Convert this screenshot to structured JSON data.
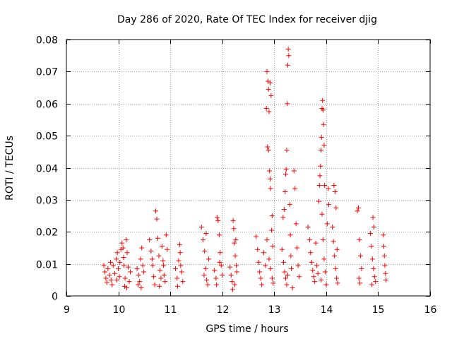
{
  "chart_data": {
    "type": "scatter",
    "title": "Day 286 of 2020, Rate Of TEC Index for receiver djig",
    "xlabel": "GPS time / hours",
    "ylabel": "ROTI / TECUs",
    "xlim": [
      9,
      16
    ],
    "ylim": [
      0,
      0.08
    ],
    "grid": true,
    "marker": "+",
    "color": "#ff0000",
    "x_ticks": [
      {
        "value": 9,
        "label": "9"
      },
      {
        "value": 10,
        "label": "10"
      },
      {
        "value": 11,
        "label": "11"
      },
      {
        "value": 12,
        "label": "12"
      },
      {
        "value": 13,
        "label": "13"
      },
      {
        "value": 14,
        "label": "14"
      },
      {
        "value": 15,
        "label": "15"
      },
      {
        "value": 16,
        "label": "16"
      }
    ],
    "y_ticks": [
      {
        "value": 0,
        "label": "0"
      },
      {
        "value": 0.01,
        "label": "0.01"
      },
      {
        "value": 0.02,
        "label": "0.02"
      },
      {
        "value": 0.03,
        "label": "0.03"
      },
      {
        "value": 0.04,
        "label": "0.04"
      },
      {
        "value": 0.05,
        "label": "0.05"
      },
      {
        "value": 0.06,
        "label": "0.06"
      },
      {
        "value": 0.07,
        "label": "0.07"
      },
      {
        "value": 0.08,
        "label": "0.08"
      }
    ],
    "series": [
      {
        "name": "ROTI",
        "points": [
          [
            9.72,
            0.0095
          ],
          [
            9.74,
            0.0075
          ],
          [
            9.76,
            0.0055
          ],
          [
            9.78,
            0.0042
          ],
          [
            9.8,
            0.0085
          ],
          [
            9.83,
            0.0065
          ],
          [
            9.86,
            0.005
          ],
          [
            9.88,
            0.0035
          ],
          [
            9.9,
            0.0095
          ],
          [
            9.93,
            0.007
          ],
          [
            9.85,
            0.0105
          ],
          [
            9.96,
            0.0115
          ],
          [
            9.98,
            0.0135
          ],
          [
            10.0,
            0.0085
          ],
          [
            10.02,
            0.006
          ],
          [
            10.05,
            0.0145
          ],
          [
            10.07,
            0.0165
          ],
          [
            10.09,
            0.015
          ],
          [
            10.11,
            0.0095
          ],
          [
            10.13,
            0.0055
          ],
          [
            10.15,
            0.0175
          ],
          [
            10.17,
            0.0135
          ],
          [
            10.19,
            0.009
          ],
          [
            10.21,
            0.0045
          ],
          [
            10.23,
            0.0075
          ],
          [
            10.1,
            0.012
          ],
          [
            10.03,
            0.0105
          ],
          [
            10.12,
            0.003
          ],
          [
            10.16,
            0.0025
          ],
          [
            9.97,
            0.005
          ],
          [
            10.36,
            0.0085
          ],
          [
            10.39,
            0.0065
          ],
          [
            10.41,
            0.0045
          ],
          [
            10.43,
            0.0115
          ],
          [
            10.45,
            0.015
          ],
          [
            10.47,
            0.0095
          ],
          [
            10.38,
            0.0035
          ],
          [
            10.44,
            0.0025
          ],
          [
            10.49,
            0.0075
          ],
          [
            10.6,
            0.0175
          ],
          [
            10.63,
            0.014
          ],
          [
            10.66,
            0.0095
          ],
          [
            10.68,
            0.006
          ],
          [
            10.7,
            0.0035
          ],
          [
            10.72,
            0.0265
          ],
          [
            10.74,
            0.024
          ],
          [
            10.76,
            0.018
          ],
          [
            10.78,
            0.0125
          ],
          [
            10.8,
            0.008
          ],
          [
            10.82,
            0.0055
          ],
          [
            10.84,
            0.0155
          ],
          [
            10.86,
            0.011
          ],
          [
            10.88,
            0.0065
          ],
          [
            10.9,
            0.0045
          ],
          [
            10.92,
            0.019
          ],
          [
            10.94,
            0.0145
          ],
          [
            10.65,
            0.0115
          ],
          [
            10.79,
            0.003
          ],
          [
            10.87,
            0.0095
          ],
          [
            11.1,
            0.0085
          ],
          [
            11.13,
            0.0055
          ],
          [
            11.16,
            0.011
          ],
          [
            11.19,
            0.0135
          ],
          [
            11.22,
            0.0075
          ],
          [
            11.24,
            0.0045
          ],
          [
            11.18,
            0.016
          ],
          [
            11.2,
            0.0095
          ],
          [
            11.14,
            0.003
          ],
          [
            11.6,
            0.0215
          ],
          [
            11.63,
            0.0175
          ],
          [
            11.66,
            0.014
          ],
          [
            11.68,
            0.0085
          ],
          [
            11.7,
            0.005
          ],
          [
            11.72,
            0.0035
          ],
          [
            11.74,
            0.0115
          ],
          [
            11.65,
            0.0065
          ],
          [
            11.69,
            0.0195
          ],
          [
            11.85,
            0.008
          ],
          [
            11.88,
            0.0055
          ],
          [
            11.9,
            0.0245
          ],
          [
            11.92,
            0.0235
          ],
          [
            11.94,
            0.019
          ],
          [
            11.96,
            0.0135
          ],
          [
            11.98,
            0.0095
          ],
          [
            12.0,
            0.0065
          ],
          [
            11.89,
            0.0035
          ],
          [
            11.95,
            0.0105
          ],
          [
            12.15,
            0.009
          ],
          [
            12.17,
            0.0065
          ],
          [
            12.19,
            0.0045
          ],
          [
            12.21,
            0.0235
          ],
          [
            12.22,
            0.021
          ],
          [
            12.23,
            0.0165
          ],
          [
            12.25,
            0.0125
          ],
          [
            12.27,
            0.0095
          ],
          [
            12.2,
            0.002
          ],
          [
            12.24,
            0.0035
          ],
          [
            12.26,
            0.0175
          ],
          [
            12.28,
            0.0075
          ],
          [
            12.65,
            0.0185
          ],
          [
            12.68,
            0.0145
          ],
          [
            12.7,
            0.0105
          ],
          [
            12.72,
            0.0075
          ],
          [
            12.74,
            0.0055
          ],
          [
            12.76,
            0.0035
          ],
          [
            12.8,
            0.0135
          ],
          [
            12.83,
            0.0095
          ],
          [
            12.85,
            0.0585
          ],
          [
            12.86,
            0.07
          ],
          [
            12.88,
            0.067
          ],
          [
            12.89,
            0.0645
          ],
          [
            12.9,
            0.0575
          ],
          [
            12.92,
            0.0665
          ],
          [
            12.94,
            0.0625
          ],
          [
            12.87,
            0.0465
          ],
          [
            12.89,
            0.0455
          ],
          [
            12.91,
            0.039
          ],
          [
            12.92,
            0.0365
          ],
          [
            12.93,
            0.0335
          ],
          [
            12.96,
            0.025
          ],
          [
            12.95,
            0.0205
          ],
          [
            12.97,
            0.0155
          ],
          [
            12.9,
            0.0115
          ],
          [
            12.93,
            0.0085
          ],
          [
            12.96,
            0.0055
          ],
          [
            12.98,
            0.004
          ],
          [
            12.86,
            0.0175
          ],
          [
            13.15,
            0.0145
          ],
          [
            13.18,
            0.0105
          ],
          [
            13.2,
            0.0075
          ],
          [
            13.22,
            0.0055
          ],
          [
            13.24,
            0.0035
          ],
          [
            13.17,
            0.0245
          ],
          [
            13.19,
            0.027
          ],
          [
            13.21,
            0.0325
          ],
          [
            13.22,
            0.038
          ],
          [
            13.23,
            0.0395
          ],
          [
            13.24,
            0.0455
          ],
          [
            13.25,
            0.06
          ],
          [
            13.26,
            0.072
          ],
          [
            13.27,
            0.077
          ],
          [
            13.28,
            0.075
          ],
          [
            13.3,
            0.0285
          ],
          [
            13.31,
            0.019
          ],
          [
            13.32,
            0.0125
          ],
          [
            13.33,
            0.0085
          ],
          [
            13.26,
            0.0065
          ],
          [
            13.38,
            0.039
          ],
          [
            13.4,
            0.0335
          ],
          [
            13.42,
            0.0225
          ],
          [
            13.44,
            0.015
          ],
          [
            13.46,
            0.0095
          ],
          [
            13.48,
            0.006
          ],
          [
            13.35,
            0.0025
          ],
          [
            13.65,
            0.0215
          ],
          [
            13.68,
            0.0175
          ],
          [
            13.7,
            0.0135
          ],
          [
            13.72,
            0.0105
          ],
          [
            13.74,
            0.008
          ],
          [
            13.76,
            0.006
          ],
          [
            13.78,
            0.0045
          ],
          [
            13.8,
            0.0165
          ],
          [
            13.82,
            0.0095
          ],
          [
            13.84,
            0.007
          ],
          [
            13.86,
            0.0295
          ],
          [
            13.87,
            0.0345
          ],
          [
            13.88,
            0.0375
          ],
          [
            13.89,
            0.0405
          ],
          [
            13.9,
            0.0455
          ],
          [
            13.91,
            0.0495
          ],
          [
            13.92,
            0.0585
          ],
          [
            13.93,
            0.061
          ],
          [
            13.94,
            0.058
          ],
          [
            13.95,
            0.0535
          ],
          [
            13.96,
            0.047
          ],
          [
            13.97,
            0.0345
          ],
          [
            13.92,
            0.0255
          ],
          [
            13.94,
            0.0175
          ],
          [
            13.96,
            0.0115
          ],
          [
            13.98,
            0.0075
          ],
          [
            13.9,
            0.005
          ],
          [
            14.0,
            0.0035
          ],
          [
            14.02,
            0.0225
          ],
          [
            14.04,
            0.0335
          ],
          [
            14.05,
            0.0285
          ],
          [
            14.12,
            0.0215
          ],
          [
            14.14,
            0.017
          ],
          [
            14.16,
            0.0125
          ],
          [
            14.18,
            0.0085
          ],
          [
            14.2,
            0.0055
          ],
          [
            14.22,
            0.004
          ],
          [
            14.15,
            0.0345
          ],
          [
            14.17,
            0.0325
          ],
          [
            14.19,
            0.0275
          ],
          [
            14.21,
            0.0145
          ],
          [
            14.6,
            0.0265
          ],
          [
            14.62,
            0.0275
          ],
          [
            14.64,
            0.0175
          ],
          [
            14.66,
            0.0125
          ],
          [
            14.68,
            0.0085
          ],
          [
            14.63,
            0.0055
          ],
          [
            14.65,
            0.004
          ],
          [
            14.85,
            0.0195
          ],
          [
            14.87,
            0.0155
          ],
          [
            14.89,
            0.0115
          ],
          [
            14.91,
            0.0085
          ],
          [
            14.93,
            0.006
          ],
          [
            14.95,
            0.0045
          ],
          [
            14.9,
            0.0245
          ],
          [
            14.92,
            0.0215
          ],
          [
            14.88,
            0.0035
          ],
          [
            15.1,
            0.019
          ],
          [
            15.11,
            0.0155
          ],
          [
            15.12,
            0.0125
          ],
          [
            15.13,
            0.0095
          ],
          [
            15.14,
            0.007
          ],
          [
            15.15,
            0.005
          ]
        ]
      }
    ]
  }
}
